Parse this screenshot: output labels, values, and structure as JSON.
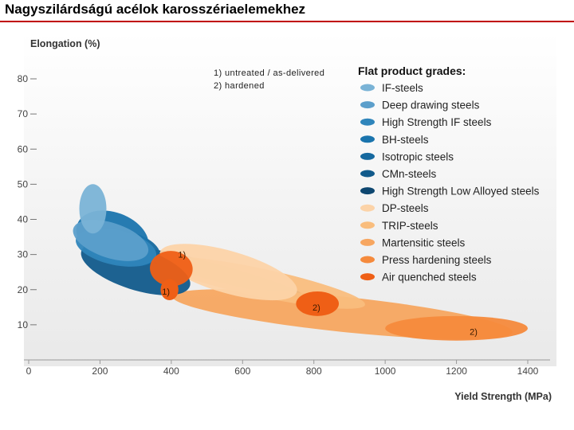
{
  "page": {
    "title": "Nagyszilárdságú acélok karosszériaelemekhez"
  },
  "chart_data": {
    "type": "scatter",
    "title": "",
    "xlabel": "Yield Strength (MPa)",
    "ylabel": "Elongation (%)",
    "xlim": [
      0,
      1400
    ],
    "ylim": [
      0,
      85
    ],
    "x_ticks": [
      0,
      200,
      400,
      600,
      800,
      1000,
      1200,
      1400
    ],
    "y_ticks": [
      10,
      20,
      30,
      40,
      50,
      60,
      70,
      80
    ],
    "notes": [
      "1) untreated / as-delivered",
      "2) hardened"
    ],
    "legend_title": "Flat product grades:",
    "grades": [
      {
        "name": "IF-steels",
        "color": "#7ab3d6",
        "cx": 180,
        "cy": 43,
        "rx": 40,
        "ry": 9.5,
        "angle": 0
      },
      {
        "name": "Deep drawing steels",
        "color": "#5c9fcb",
        "cx": 230,
        "cy": 34,
        "rx": 110,
        "ry": 5,
        "angle": 0
      },
      {
        "name": "High Strength IF steels",
        "color": "#2f85bb",
        "cx": 245,
        "cy": 32,
        "rx": 115,
        "ry": 5,
        "angle": 0
      },
      {
        "name": "BH-steels",
        "color": "#1a74ad",
        "cx": 235,
        "cy": 35,
        "rx": 105,
        "ry": 7,
        "angle": 0
      },
      {
        "name": "Isotropic steels",
        "color": "#16699f",
        "cx": 260,
        "cy": 32,
        "rx": 110,
        "ry": 5,
        "angle": 0
      },
      {
        "name": "CMn-steels",
        "color": "#115a8b",
        "cx": 300,
        "cy": 26,
        "rx": 160,
        "ry": 6,
        "angle": 0
      },
      {
        "name": "High Strength Low Alloyed steels",
        "color": "#0e4770",
        "cx": 520,
        "cy": 25,
        "rx": 260,
        "ry": 2.5,
        "angle": 0
      },
      {
        "name": "DP-steels",
        "color": "#fcd3a8",
        "cx": 560,
        "cy": 25,
        "rx": 200,
        "ry": 6,
        "angle": 0
      },
      {
        "name": "TRIP-steels",
        "color": "#f9bd7d",
        "cx": 650,
        "cy": 22,
        "rx": 300,
        "ry": 4,
        "angle": 0
      },
      {
        "name": "Martensitic steels",
        "color": "#f7a660",
        "cx": 880,
        "cy": 13,
        "rx": 480,
        "ry": 5,
        "angle": 0
      },
      {
        "name": "Press hardening steels",
        "color": "#f58a3c",
        "cx": 1200,
        "cy": 9,
        "rx": 200,
        "ry": 3.5,
        "angle": 0
      },
      {
        "name": "Air quenched steels",
        "color": "#ef5f16",
        "cx": 400,
        "cy": 26,
        "rx": 60,
        "ry": 5,
        "angle": 0
      }
    ],
    "extra_regions": [
      {
        "name": "Air quenched steels (untreated, low)",
        "color": "#ef5f16",
        "cx": 395,
        "cy": 20,
        "rx": 25,
        "ry": 3,
        "angle": 0
      },
      {
        "name": "Air quenched steels (hardened)",
        "color": "#ef5f16",
        "cx": 810,
        "cy": 16,
        "rx": 60,
        "ry": 3.5,
        "angle": 0
      }
    ],
    "region_labels": [
      {
        "text": "1)",
        "x": 430,
        "y": 30
      },
      {
        "text": "1)",
        "x": 385,
        "y": 19.5
      },
      {
        "text": "2)",
        "x": 807,
        "y": 15
      },
      {
        "text": "2)",
        "x": 1248,
        "y": 8
      }
    ]
  }
}
